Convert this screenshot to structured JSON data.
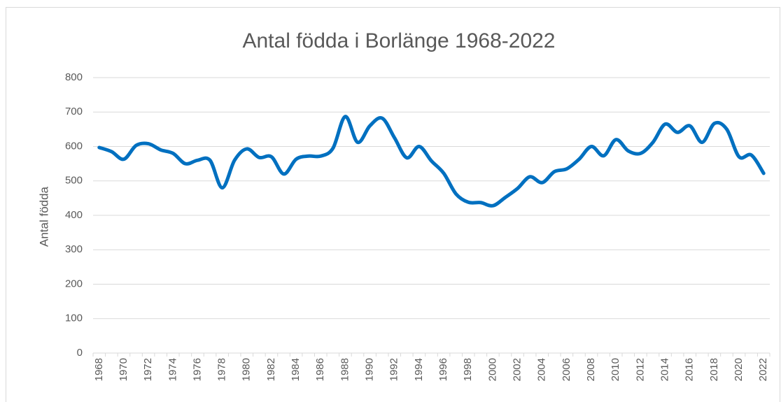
{
  "chart_data": {
    "type": "line",
    "title": "Antal födda i Borlänge 1968-2022",
    "y_label": "Antal födda",
    "categories": [
      "1968",
      null,
      "1970",
      null,
      "1972",
      null,
      "1974",
      null,
      "1976",
      null,
      "1978",
      null,
      "1980",
      null,
      "1982",
      null,
      "1984",
      null,
      "1986",
      null,
      "1988",
      null,
      "1990",
      null,
      "1992",
      null,
      "1994",
      null,
      "1996",
      null,
      "1998",
      null,
      "2000",
      null,
      "2002",
      null,
      "2004",
      null,
      "2006",
      null,
      "2008",
      null,
      "2010",
      null,
      "2012",
      null,
      "2014",
      null,
      "2016",
      null,
      "2018",
      null,
      "2020",
      null,
      "2022"
    ],
    "series": [
      {
        "name": "Antal födda",
        "color": "#0070c0",
        "values": [
          597,
          585,
          563,
          603,
          608,
          590,
          580,
          550,
          560,
          560,
          480,
          560,
          593,
          568,
          570,
          520,
          563,
          572,
          572,
          595,
          687,
          612,
          660,
          682,
          625,
          567,
          600,
          558,
          522,
          462,
          438,
          437,
          428,
          452,
          478,
          512,
          495,
          527,
          535,
          563,
          600,
          573,
          620,
          587,
          580,
          612,
          665,
          641,
          660,
          612,
          667,
          650,
          570,
          575,
          522
        ]
      }
    ],
    "ylim": [
      0,
      800
    ],
    "yticks": [
      0,
      100,
      200,
      300,
      400,
      500,
      600,
      700,
      800
    ],
    "grid": true
  }
}
